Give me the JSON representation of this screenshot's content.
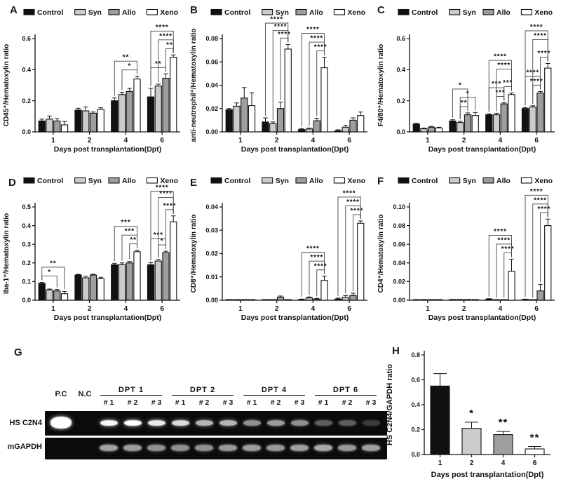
{
  "figure": {
    "panels": [
      "A",
      "B",
      "C",
      "D",
      "E",
      "F",
      "G",
      "H"
    ]
  },
  "legend": {
    "items": [
      {
        "label": "Control",
        "color": "#111111"
      },
      {
        "label": "Syn",
        "color": "#cccccc"
      },
      {
        "label": "Allo",
        "color": "#9e9e9e"
      },
      {
        "label": "Xeno",
        "color": "#ffffff"
      }
    ]
  },
  "chart_data": [
    {
      "panel": "A",
      "type": "bar",
      "ylabel": "CD45⁺/Hematoxylin ratio",
      "xlabel": "Days post transplantation(Dpt)",
      "categories": [
        "1",
        "2",
        "4",
        "6"
      ],
      "ylim": [
        0,
        0.6
      ],
      "yticks": [
        "0.0",
        "0.2",
        "0.4",
        "0.6"
      ],
      "series": [
        {
          "name": "Control",
          "color": "#111111",
          "values": [
            0.07,
            0.14,
            0.2,
            0.225
          ],
          "errors": [
            0.012,
            0.012,
            0.018,
            0.055
          ]
        },
        {
          "name": "Syn",
          "color": "#cccccc",
          "values": [
            0.082,
            0.135,
            0.24,
            0.295
          ],
          "errors": [
            0.02,
            0.025,
            0.015,
            0.012
          ]
        },
        {
          "name": "Allo",
          "color": "#9e9e9e",
          "values": [
            0.07,
            0.12,
            0.26,
            0.345
          ],
          "errors": [
            0.015,
            0.008,
            0.02,
            0.028
          ]
        },
        {
          "name": "Xeno",
          "color": "#ffffff",
          "values": [
            0.045,
            0.145,
            0.34,
            0.48
          ],
          "errors": [
            0.022,
            0.01,
            0.018,
            0.015
          ]
        }
      ],
      "sigs": [
        {
          "cat": 2,
          "from": 1,
          "to": 3,
          "stars": "*"
        },
        {
          "cat": 2,
          "from": 0,
          "to": 3,
          "stars": "**"
        },
        {
          "cat": 3,
          "from": 2,
          "to": 3,
          "stars": "**"
        },
        {
          "cat": 3,
          "from": 0,
          "to": 2,
          "stars": "**"
        },
        {
          "cat": 3,
          "from": 1,
          "to": 3,
          "stars": "****"
        },
        {
          "cat": 3,
          "from": 0,
          "to": 3,
          "stars": "****"
        }
      ]
    },
    {
      "panel": "B",
      "type": "bar",
      "ylabel": "anti-neutrophil⁺/Hematoxylin ratio",
      "xlabel": "Days post transplantation(Dpt)",
      "categories": [
        "1",
        "2",
        "4",
        "6"
      ],
      "ylim": [
        0,
        0.08
      ],
      "yticks": [
        "0.00",
        "0.02",
        "0.04",
        "0.06",
        "0.08"
      ],
      "series": [
        {
          "name": "Control",
          "color": "#111111",
          "values": [
            0.019,
            0.0085,
            0.002,
            0.001
          ],
          "errors": [
            0.001,
            0.0035,
            0.0008,
            0.0008
          ]
        },
        {
          "name": "Syn",
          "color": "#cccccc",
          "values": [
            0.022,
            0.007,
            0.0025,
            0.004
          ],
          "errors": [
            0.0028,
            0.0015,
            0.0008,
            0.0015
          ]
        },
        {
          "name": "Allo",
          "color": "#9e9e9e",
          "values": [
            0.029,
            0.02,
            0.0095,
            0.01
          ],
          "errors": [
            0.009,
            0.0055,
            0.0022,
            0.002
          ]
        },
        {
          "name": "Xeno",
          "color": "#ffffff",
          "values": [
            0.0225,
            0.071,
            0.055,
            0.014
          ],
          "errors": [
            0.011,
            0.004,
            0.009,
            0.003
          ]
        }
      ],
      "sigs": [
        {
          "cat": 1,
          "from": 2,
          "to": 3,
          "stars": "****"
        },
        {
          "cat": 1,
          "from": 1,
          "to": 3,
          "stars": "****"
        },
        {
          "cat": 1,
          "from": 0,
          "to": 3,
          "stars": "****"
        },
        {
          "cat": 2,
          "from": 2,
          "to": 3,
          "stars": "****"
        },
        {
          "cat": 2,
          "from": 1,
          "to": 3,
          "stars": "****"
        },
        {
          "cat": 2,
          "from": 0,
          "to": 3,
          "stars": "****"
        }
      ]
    },
    {
      "panel": "C",
      "type": "bar",
      "ylabel": "F4/80⁺/Hematoxylin ratio",
      "xlabel": "Days post transplantation(Dpt)",
      "categories": [
        "1",
        "2",
        "4",
        "6"
      ],
      "ylim": [
        0,
        0.6
      ],
      "yticks": [
        "0.0",
        "0.2",
        "0.4",
        "0.6"
      ],
      "series": [
        {
          "name": "Control",
          "color": "#111111",
          "values": [
            0.05,
            0.07,
            0.11,
            0.15
          ],
          "errors": [
            0.005,
            0.008,
            0.006,
            0.006
          ]
        },
        {
          "name": "Syn",
          "color": "#cccccc",
          "values": [
            0.02,
            0.06,
            0.11,
            0.16
          ],
          "errors": [
            0.004,
            0.008,
            0.01,
            0.008
          ]
        },
        {
          "name": "Allo",
          "color": "#9e9e9e",
          "values": [
            0.03,
            0.11,
            0.18,
            0.25
          ],
          "errors": [
            0.005,
            0.012,
            0.007,
            0.01
          ]
        },
        {
          "name": "Xeno",
          "color": "#ffffff",
          "values": [
            0.025,
            0.105,
            0.24,
            0.41
          ],
          "errors": [
            0.005,
            0.02,
            0.01,
            0.03
          ]
        }
      ],
      "sigs": [
        {
          "cat": 1,
          "from": 1,
          "to": 2,
          "stars": "**"
        },
        {
          "cat": 1,
          "from": 1,
          "to": 3,
          "stars": "*"
        },
        {
          "cat": 1,
          "from": 0,
          "to": 2,
          "stars": "*"
        },
        {
          "cat": 2,
          "from": 2,
          "to": 3,
          "stars": "***"
        },
        {
          "cat": 2,
          "from": 1,
          "to": 2,
          "stars": "***"
        },
        {
          "cat": 2,
          "from": 0,
          "to": 2,
          "stars": "***"
        },
        {
          "cat": 2,
          "from": 1,
          "to": 3,
          "stars": "****"
        },
        {
          "cat": 2,
          "from": 0,
          "to": 3,
          "stars": "****"
        },
        {
          "cat": 3,
          "from": 2,
          "to": 3,
          "stars": "****"
        },
        {
          "cat": 3,
          "from": 1,
          "to": 2,
          "stars": "****"
        },
        {
          "cat": 3,
          "from": 0,
          "to": 2,
          "stars": "****"
        },
        {
          "cat": 3,
          "from": 1,
          "to": 3,
          "stars": "****"
        },
        {
          "cat": 3,
          "from": 0,
          "to": 3,
          "stars": "****"
        }
      ]
    },
    {
      "panel": "D",
      "type": "bar",
      "ylabel": "Iba-1⁺/Hematoxylin ratio",
      "xlabel": "Days post transplantation(Dpt)",
      "categories": [
        "1",
        "2",
        "4",
        "6"
      ],
      "ylim": [
        0,
        0.5
      ],
      "yticks": [
        "0.0",
        "0.1",
        "0.2",
        "0.3",
        "0.4",
        "0.5"
      ],
      "series": [
        {
          "name": "Control",
          "color": "#111111",
          "values": [
            0.09,
            0.135,
            0.19,
            0.19
          ],
          "errors": [
            0.006,
            0.004,
            0.008,
            0.012
          ]
        },
        {
          "name": "Syn",
          "color": "#cccccc",
          "values": [
            0.055,
            0.12,
            0.19,
            0.21
          ],
          "errors": [
            0.005,
            0.008,
            0.01,
            0.008
          ]
        },
        {
          "name": "Allo",
          "color": "#9e9e9e",
          "values": [
            0.05,
            0.135,
            0.2,
            0.255
          ],
          "errors": [
            0.008,
            0.004,
            0.008,
            0.008
          ]
        },
        {
          "name": "Xeno",
          "color": "#ffffff",
          "values": [
            0.035,
            0.115,
            0.26,
            0.42
          ],
          "errors": [
            0.012,
            0.008,
            0.008,
            0.032
          ]
        }
      ],
      "sigs": [
        {
          "cat": 0,
          "from": 0,
          "to": 2,
          "stars": "*"
        },
        {
          "cat": 0,
          "from": 0,
          "to": 3,
          "stars": "**"
        },
        {
          "cat": 2,
          "from": 2,
          "to": 3,
          "stars": "**"
        },
        {
          "cat": 2,
          "from": 1,
          "to": 3,
          "stars": "***"
        },
        {
          "cat": 2,
          "from": 0,
          "to": 3,
          "stars": "***"
        },
        {
          "cat": 3,
          "from": 2,
          "to": 3,
          "stars": "****"
        },
        {
          "cat": 3,
          "from": 1,
          "to": 2,
          "stars": "*"
        },
        {
          "cat": 3,
          "from": 0,
          "to": 2,
          "stars": "***"
        },
        {
          "cat": 3,
          "from": 1,
          "to": 3,
          "stars": "****"
        },
        {
          "cat": 3,
          "from": 0,
          "to": 3,
          "stars": "****"
        }
      ]
    },
    {
      "panel": "E",
      "type": "bar",
      "ylabel": "CD8⁺/Hematoxylin ratio",
      "xlabel": "Days post transplantation(Dpt)",
      "categories": [
        "1",
        "2",
        "4",
        "6"
      ],
      "ylim": [
        0,
        0.04
      ],
      "yticks": [
        "0.00",
        "0.01",
        "0.02",
        "0.03",
        "0.04"
      ],
      "series": [
        {
          "name": "Control",
          "color": "#111111",
          "values": [
            0.0002,
            0.0002,
            0.0003,
            0.0005
          ],
          "errors": [
            0,
            0,
            0.0002,
            0.0004
          ]
        },
        {
          "name": "Syn",
          "color": "#cccccc",
          "values": [
            0.0002,
            0.0002,
            0.001,
            0.0012
          ],
          "errors": [
            0,
            0,
            0.0004,
            0.0008
          ]
        },
        {
          "name": "Allo",
          "color": "#9e9e9e",
          "values": [
            0.0002,
            0.0013,
            0.0005,
            0.002
          ],
          "errors": [
            0,
            0.0005,
            0.0003,
            0.001
          ]
        },
        {
          "name": "Xeno",
          "color": "#ffffff",
          "values": [
            0.0002,
            0.0002,
            0.0085,
            0.033
          ],
          "errors": [
            0,
            0,
            0.0018,
            0.001
          ]
        }
      ],
      "sigs": [
        {
          "cat": 2,
          "from": 2,
          "to": 3,
          "stars": "****"
        },
        {
          "cat": 2,
          "from": 1,
          "to": 3,
          "stars": "****"
        },
        {
          "cat": 2,
          "from": 0,
          "to": 3,
          "stars": "****"
        },
        {
          "cat": 3,
          "from": 2,
          "to": 3,
          "stars": "****"
        },
        {
          "cat": 3,
          "from": 1,
          "to": 3,
          "stars": "****"
        },
        {
          "cat": 3,
          "from": 0,
          "to": 3,
          "stars": "****"
        }
      ]
    },
    {
      "panel": "F",
      "type": "bar",
      "ylabel": "CD4⁺/Hematoxylin ratio",
      "xlabel": "Days post transplantation(Dpt)",
      "categories": [
        "1",
        "2",
        "4",
        "6"
      ],
      "ylim": [
        0,
        0.1
      ],
      "yticks": [
        "0.00",
        "0.02",
        "0.04",
        "0.06",
        "0.08",
        "0.10"
      ],
      "series": [
        {
          "name": "Control",
          "color": "#111111",
          "values": [
            0.0005,
            0.0008,
            0.0012,
            0.0008
          ],
          "errors": [
            0,
            0,
            0.0005,
            0.0004
          ]
        },
        {
          "name": "Syn",
          "color": "#cccccc",
          "values": [
            0.0004,
            0.0008,
            0.0004,
            0.0004
          ],
          "errors": [
            0,
            0,
            0,
            0
          ]
        },
        {
          "name": "Allo",
          "color": "#9e9e9e",
          "values": [
            0.0004,
            0.0008,
            0.0004,
            0.01
          ],
          "errors": [
            0,
            0,
            0,
            0.007
          ]
        },
        {
          "name": "Xeno",
          "color": "#ffffff",
          "values": [
            0.0004,
            0.0006,
            0.031,
            0.08
          ],
          "errors": [
            0,
            0,
            0.013,
            0.007
          ]
        }
      ],
      "sigs": [
        {
          "cat": 2,
          "from": 2,
          "to": 3,
          "stars": "****"
        },
        {
          "cat": 2,
          "from": 1,
          "to": 3,
          "stars": "****"
        },
        {
          "cat": 2,
          "from": 0,
          "to": 3,
          "stars": "****"
        },
        {
          "cat": 3,
          "from": 2,
          "to": 3,
          "stars": "****"
        },
        {
          "cat": 3,
          "from": 1,
          "to": 3,
          "stars": "****"
        },
        {
          "cat": 3,
          "from": 0,
          "to": 3,
          "stars": "****"
        }
      ]
    },
    {
      "panel": "H",
      "type": "bar",
      "ylabel": "HS C2N4/GAPDH ratio",
      "xlabel": "Days post transplantation(Dpt)",
      "categories": [
        "1",
        "2",
        "4",
        "6"
      ],
      "ylim": [
        0,
        0.8
      ],
      "yticks": [
        "0.0",
        "0.2",
        "0.4",
        "0.6",
        "0.8"
      ],
      "values": [
        0.55,
        0.21,
        0.16,
        0.045
      ],
      "errors": [
        0.1,
        0.05,
        0.025,
        0.02
      ],
      "bar_colors": [
        "#111111",
        "#cccccc",
        "#9e9e9e",
        "#ffffff"
      ],
      "sig_labels": [
        "",
        "*",
        "**",
        "**"
      ]
    }
  ],
  "gel": {
    "panel": "G",
    "row_labels": [
      "HS C2N4",
      "mGAPDH"
    ],
    "control_lanes": [
      "P.C",
      "N.C"
    ],
    "groups": [
      {
        "label": "DPT 1",
        "replicates": [
          "# 1",
          "# 2",
          "# 3"
        ]
      },
      {
        "label": "DPT 2",
        "replicates": [
          "# 1",
          "# 2",
          "# 3"
        ]
      },
      {
        "label": "DPT 4",
        "replicates": [
          "# 1",
          "# 2",
          "# 3"
        ]
      },
      {
        "label": "DPT 6",
        "replicates": [
          "# 1",
          "# 2",
          "# 3"
        ]
      }
    ],
    "bands": {
      "hs_c2n4": {
        "pc": 1.0,
        "nc": 0,
        "samples": [
          0.97,
          1.0,
          0.92,
          0.85,
          0.7,
          0.7,
          0.55,
          0.6,
          0.55,
          0.34,
          0.34,
          0.2
        ]
      },
      "mgapdh": {
        "pc": 0,
        "nc": 0,
        "samples": [
          0.62,
          0.6,
          0.55,
          0.55,
          0.55,
          0.58,
          0.6,
          0.58,
          0.6,
          0.65,
          0.58,
          0.6
        ]
      }
    }
  }
}
